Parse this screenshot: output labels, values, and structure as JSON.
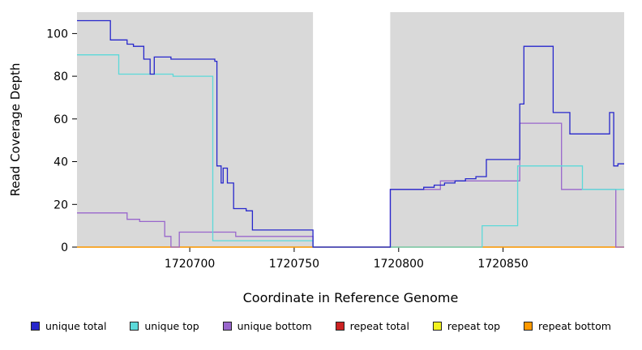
{
  "chart_data": {
    "type": "line",
    "step": true,
    "title": "",
    "xlabel": "Coordinate in Reference Genome",
    "ylabel": "Read Coverage Depth",
    "xlim": [
      1720646,
      1720908
    ],
    "ylim": [
      0,
      110
    ],
    "x_ticks": [
      1720700,
      1720750,
      1720800,
      1720850
    ],
    "y_ticks": [
      0,
      20,
      40,
      60,
      80,
      100
    ],
    "plot_background": "#d9d9d9",
    "gap_region": {
      "from": 1720759,
      "to": 1720796,
      "color": "#ffffff"
    },
    "legend_position": "bottom",
    "grid": false,
    "z_order": [
      "repeat total",
      "repeat top",
      "repeat bottom",
      "unique bottom",
      "unique top",
      "unique total"
    ],
    "series": [
      {
        "name": "unique total",
        "color": "#2727cc",
        "points": [
          [
            1720646,
            106
          ],
          [
            1720662,
            97
          ],
          [
            1720670,
            95
          ],
          [
            1720673,
            94
          ],
          [
            1720678,
            88
          ],
          [
            1720681,
            81
          ],
          [
            1720683,
            89
          ],
          [
            1720691,
            88
          ],
          [
            1720712,
            87
          ],
          [
            1720713,
            38
          ],
          [
            1720715,
            30
          ],
          [
            1720716,
            37
          ],
          [
            1720718,
            30
          ],
          [
            1720721,
            18
          ],
          [
            1720727,
            17
          ],
          [
            1720730,
            8
          ],
          [
            1720759,
            0
          ],
          [
            1720796,
            27
          ],
          [
            1720812,
            28
          ],
          [
            1720817,
            29
          ],
          [
            1720822,
            30
          ],
          [
            1720827,
            31
          ],
          [
            1720832,
            32
          ],
          [
            1720837,
            33
          ],
          [
            1720842,
            41
          ],
          [
            1720858,
            67
          ],
          [
            1720860,
            94
          ],
          [
            1720874,
            63
          ],
          [
            1720882,
            53
          ],
          [
            1720901,
            63
          ],
          [
            1720903,
            38
          ],
          [
            1720905,
            39
          ]
        ]
      },
      {
        "name": "unique top",
        "color": "#5cd9d9",
        "points": [
          [
            1720646,
            90
          ],
          [
            1720666,
            81
          ],
          [
            1720692,
            80
          ],
          [
            1720711,
            3
          ],
          [
            1720759,
            0
          ],
          [
            1720840,
            10
          ],
          [
            1720857,
            38
          ],
          [
            1720888,
            27
          ]
        ]
      },
      {
        "name": "unique bottom",
        "color": "#9966cc",
        "points": [
          [
            1720646,
            16
          ],
          [
            1720670,
            13
          ],
          [
            1720676,
            12
          ],
          [
            1720688,
            5
          ],
          [
            1720691,
            0
          ],
          [
            1720695,
            7
          ],
          [
            1720722,
            5
          ],
          [
            1720759,
            0
          ],
          [
            1720796,
            27
          ],
          [
            1720820,
            31
          ],
          [
            1720858,
            58
          ],
          [
            1720878,
            27
          ],
          [
            1720904,
            0
          ]
        ]
      },
      {
        "name": "repeat total",
        "color": "#cc2222",
        "points": [
          [
            1720646,
            0
          ]
        ]
      },
      {
        "name": "repeat top",
        "color": "#f2f21e",
        "points": [
          [
            1720646,
            0
          ]
        ]
      },
      {
        "name": "repeat bottom",
        "color": "#ff9900",
        "points": [
          [
            1720646,
            0
          ]
        ]
      }
    ]
  }
}
